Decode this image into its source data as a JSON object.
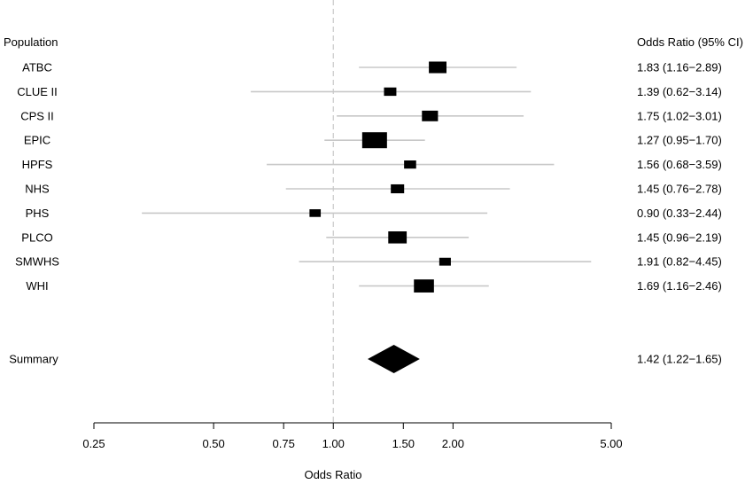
{
  "chart_data": {
    "type": "forest",
    "left_header": "Population",
    "right_header": "Odds Ratio (95% CI)",
    "xlabel": "Odds Ratio",
    "x_scale": "log",
    "xlim": [
      0.25,
      5.0
    ],
    "reference_line": 1.0,
    "ticks": [
      {
        "value": 0.25,
        "label": "0.25"
      },
      {
        "value": 0.5,
        "label": "0.50"
      },
      {
        "value": 0.75,
        "label": "0.75"
      },
      {
        "value": 1.0,
        "label": "1.00"
      },
      {
        "value": 1.5,
        "label": "1.50"
      },
      {
        "value": 2.0,
        "label": "2.00"
      },
      {
        "value": 5.0,
        "label": "5.00"
      }
    ],
    "studies": [
      {
        "name": "ATBC",
        "or": 1.83,
        "lo": 1.16,
        "hi": 2.89,
        "weight": 0.55,
        "label": "1.83 (1.16−2.89)"
      },
      {
        "name": "CLUE II",
        "or": 1.39,
        "lo": 0.62,
        "hi": 3.14,
        "weight": 0.22,
        "label": "1.39 (0.62−3.14)"
      },
      {
        "name": "CPS II",
        "or": 1.75,
        "lo": 1.02,
        "hi": 3.01,
        "weight": 0.45,
        "label": "1.75 (1.02−3.01)"
      },
      {
        "name": "EPIC",
        "or": 1.27,
        "lo": 0.95,
        "hi": 1.7,
        "weight": 1.0,
        "label": "1.27 (0.95−1.70)"
      },
      {
        "name": "HPFS",
        "or": 1.56,
        "lo": 0.68,
        "hi": 3.59,
        "weight": 0.2,
        "label": "1.56 (0.68−3.59)"
      },
      {
        "name": "NHS",
        "or": 1.45,
        "lo": 0.76,
        "hi": 2.78,
        "weight": 0.28,
        "label": "1.45 (0.76−2.78)"
      },
      {
        "name": "PHS",
        "or": 0.9,
        "lo": 0.33,
        "hi": 2.44,
        "weight": 0.15,
        "label": "0.90 (0.33−2.44)"
      },
      {
        "name": "PLCO",
        "or": 1.45,
        "lo": 0.96,
        "hi": 2.19,
        "weight": 0.6,
        "label": "1.45 (0.96−2.19)"
      },
      {
        "name": "SMWHS",
        "or": 1.91,
        "lo": 0.82,
        "hi": 4.45,
        "weight": 0.17,
        "label": "1.91 (0.82−4.45)"
      },
      {
        "name": "WHI",
        "or": 1.69,
        "lo": 1.16,
        "hi": 2.46,
        "weight": 0.7,
        "label": "1.69 (1.16−2.46)"
      }
    ],
    "summary": {
      "name": "Summary",
      "or": 1.42,
      "lo": 1.22,
      "hi": 1.65,
      "label": "1.42 (1.22−1.65)"
    },
    "colors": {
      "marker": "#000000",
      "ci_line": "#c8c8c8",
      "reference_line": "#c8c8c8",
      "axis": "#000000"
    }
  }
}
